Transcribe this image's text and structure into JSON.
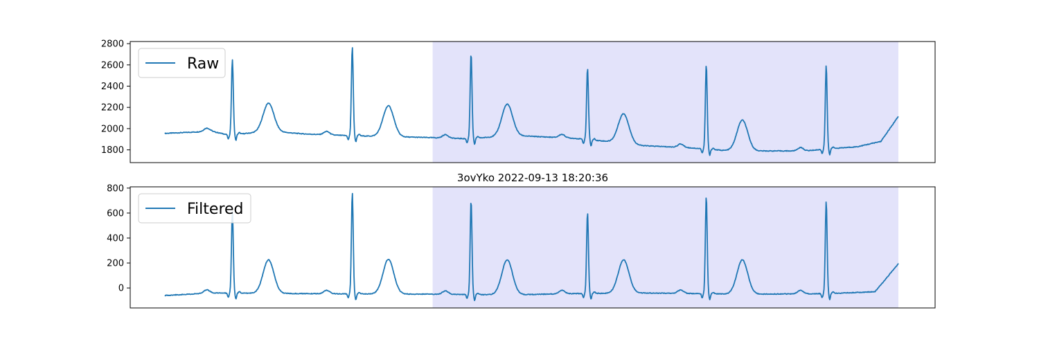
{
  "chart_data": [
    {
      "type": "line",
      "title": "",
      "xlabel": "",
      "ylabel": "",
      "ylim": [
        1680,
        2820
      ],
      "yticks": [
        1800,
        2000,
        2200,
        2400,
        2600,
        2800
      ],
      "x_ticks_visible": false,
      "grid": false,
      "legend": "upper-left",
      "line_color": "#1f77b4",
      "highlight_color": "#e3e3fa",
      "highlight_x_range": [
        2.3,
        6.3
      ],
      "x_range": [
        0,
        6.3
      ],
      "beats_x": [
        0.58,
        1.61,
        2.63,
        3.63,
        4.65,
        5.68
      ],
      "r_peaks_y": [
        2650,
        2770,
        2710,
        2570,
        2600,
        2595
      ],
      "t_waves_x": [
        0.89,
        1.92,
        2.94,
        3.94,
        4.96
      ],
      "t_waves_y": [
        2240,
        2215,
        2230,
        2140,
        2080
      ],
      "baseline_x": [
        0.0,
        0.4,
        0.55,
        0.9,
        1.2,
        1.55,
        2.3,
        2.6,
        3.0,
        3.5,
        3.8,
        4.1,
        4.5,
        4.8,
        5.0,
        5.5,
        5.7,
        5.95,
        6.15,
        6.3
      ],
      "baseline_y": [
        1955,
        1975,
        1940,
        1975,
        1950,
        1935,
        1915,
        1905,
        1935,
        1910,
        1880,
        1840,
        1820,
        1795,
        1790,
        1790,
        1810,
        1830,
        1880,
        2115
      ],
      "series": [
        {
          "name": "Raw"
        }
      ]
    },
    {
      "type": "line",
      "title": "3ovYko 2022-09-13 18:20:36",
      "xlabel": "",
      "ylabel": "",
      "ylim": [
        -160,
        810
      ],
      "yticks": [
        0,
        200,
        400,
        600,
        800
      ],
      "x_ticks_visible": false,
      "grid": false,
      "legend": "upper-left",
      "line_color": "#1f77b4",
      "highlight_color": "#e3e3fa",
      "highlight_x_range": [
        2.3,
        6.3
      ],
      "x_range": [
        0,
        6.3
      ],
      "beats_x": [
        0.58,
        1.61,
        2.63,
        3.63,
        4.65,
        5.68
      ],
      "r_peaks_y": [
        610,
        765,
        700,
        605,
        735,
        695
      ],
      "t_waves_x": [
        0.89,
        1.92,
        2.94,
        3.94,
        4.96
      ],
      "t_waves_y": [
        225,
        230,
        225,
        225,
        225
      ],
      "baseline_x": [
        0.0,
        0.4,
        1.2,
        2.3,
        3.0,
        3.5,
        4.1,
        5.0,
        5.7,
        6.1,
        6.3
      ],
      "baseline_y": [
        -60,
        -40,
        -45,
        -50,
        -55,
        -45,
        -40,
        -50,
        -45,
        -30,
        195
      ],
      "series": [
        {
          "name": "Filtered"
        }
      ]
    }
  ]
}
